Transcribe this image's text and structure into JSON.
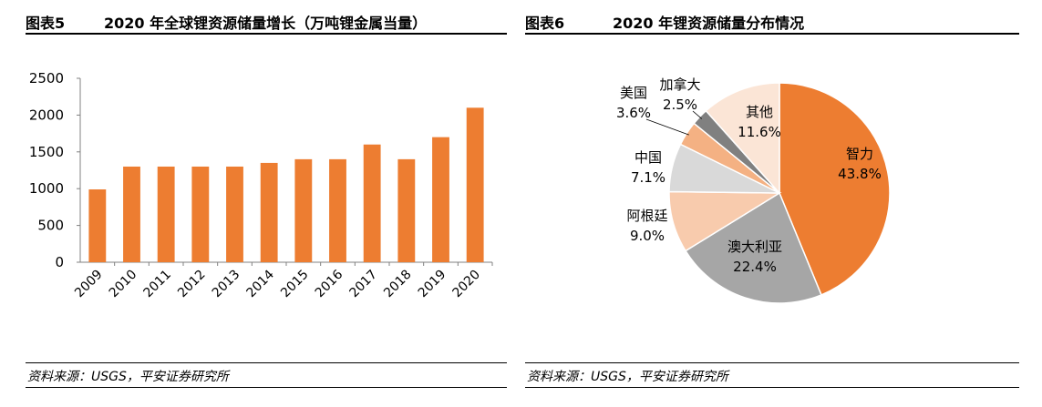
{
  "left_panel": {
    "figure_number": "图表5",
    "figure_title": "2020 年全球锂资源储量增长（万吨锂金属当量）",
    "source": "资料来源：USGS，平安证券研究所"
  },
  "right_panel": {
    "figure_number": "图表6",
    "figure_title": "2020 年锂资源储量分布情况",
    "source": "资料来源：USGS，平安证券研究所"
  },
  "chart_data": [
    {
      "type": "bar",
      "title": "2020 年全球锂资源储量增长（万吨锂金属当量）",
      "categories": [
        "2009",
        "2010",
        "2011",
        "2012",
        "2013",
        "2014",
        "2015",
        "2016",
        "2017",
        "2018",
        "2019",
        "2020"
      ],
      "values": [
        990,
        1300,
        1300,
        1300,
        1300,
        1350,
        1400,
        1400,
        1600,
        1400,
        1700,
        2100
      ],
      "ylim": [
        0,
        2500
      ],
      "yticks": [
        0,
        500,
        1000,
        1500,
        2000,
        2500
      ],
      "grid": false,
      "colors": {
        "bar": "#ED7D31"
      }
    },
    {
      "type": "pie",
      "title": "2020 年锂资源储量分布情况",
      "slices": [
        {
          "label": "智力",
          "value": 43.8,
          "display": "43.8%",
          "color": "#ED7D31"
        },
        {
          "label": "澳大利亚",
          "value": 22.4,
          "display": "22.4%",
          "color": "#A6A6A6"
        },
        {
          "label": "阿根廷",
          "value": 9.0,
          "display": "9.0%",
          "color": "#F8CBAD"
        },
        {
          "label": "中国",
          "value": 7.1,
          "display": "7.1%",
          "color": "#D9D9D9"
        },
        {
          "label": "美国",
          "value": 3.6,
          "display": "3.6%",
          "color": "#F4B183"
        },
        {
          "label": "加拿大",
          "value": 2.5,
          "display": "2.5%",
          "color": "#808080"
        },
        {
          "label": "其他",
          "value": 11.6,
          "display": "11.6%",
          "color": "#FBE5D6"
        }
      ]
    }
  ]
}
